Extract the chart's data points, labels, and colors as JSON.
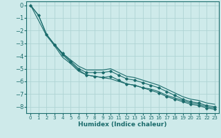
{
  "xlabel": "Humidex (Indice chaleur)",
  "ylabel": "",
  "background_color": "#ceeaea",
  "grid_color": "#aed4d4",
  "line_color": "#1a6b6b",
  "xlim": [
    -0.5,
    23.5
  ],
  "ylim": [
    -8.5,
    0.3
  ],
  "xticks": [
    0,
    1,
    2,
    3,
    4,
    5,
    6,
    7,
    8,
    9,
    10,
    11,
    12,
    13,
    14,
    15,
    16,
    17,
    18,
    19,
    20,
    21,
    22,
    23
  ],
  "yticks": [
    0,
    -1,
    -2,
    -3,
    -4,
    -5,
    -6,
    -7,
    -8
  ],
  "series": [
    {
      "x": [
        0,
        1,
        2,
        3,
        4,
        5,
        6,
        7,
        8,
        9,
        10,
        11,
        12,
        13,
        14,
        15,
        16,
        17,
        18,
        19,
        20,
        21,
        22,
        23
      ],
      "y": [
        0.0,
        -0.8,
        -2.3,
        -3.1,
        -3.8,
        -4.4,
        -5.0,
        -5.3,
        -5.3,
        -5.3,
        -5.2,
        -5.5,
        -5.8,
        -5.9,
        -6.1,
        -6.3,
        -6.5,
        -6.8,
        -7.1,
        -7.4,
        -7.6,
        -7.7,
        -7.9,
        -8.0
      ],
      "marker": true
    },
    {
      "x": [
        0,
        1,
        2,
        3,
        4,
        5,
        6,
        7,
        8,
        9,
        10,
        11,
        12,
        13,
        14,
        15,
        16,
        17,
        18,
        19,
        20,
        21,
        22,
        23
      ],
      "y": [
        0.0,
        -0.8,
        -2.3,
        -3.1,
        -3.8,
        -4.3,
        -4.8,
        -5.1,
        -5.1,
        -5.1,
        -5.0,
        -5.3,
        -5.6,
        -5.7,
        -5.9,
        -6.1,
        -6.3,
        -6.6,
        -6.9,
        -7.2,
        -7.4,
        -7.5,
        -7.7,
        -7.8
      ],
      "marker": false
    },
    {
      "x": [
        0,
        1,
        2,
        3,
        4,
        5,
        6,
        7,
        8,
        9,
        10,
        11,
        12,
        13,
        14,
        15,
        16,
        17,
        18,
        19,
        20,
        21,
        22,
        23
      ],
      "y": [
        0.0,
        -1.2,
        -2.4,
        -3.2,
        -4.1,
        -4.6,
        -5.2,
        -5.5,
        -5.6,
        -5.7,
        -5.8,
        -6.0,
        -6.2,
        -6.3,
        -6.5,
        -6.6,
        -6.8,
        -7.1,
        -7.3,
        -7.5,
        -7.7,
        -7.8,
        -8.0,
        -8.1
      ],
      "marker": false
    },
    {
      "x": [
        3,
        4,
        5,
        6,
        7,
        8,
        9,
        10,
        11,
        12,
        13,
        14,
        15,
        16,
        17,
        18,
        19,
        20,
        21,
        22,
        23
      ],
      "y": [
        -3.1,
        -3.9,
        -4.5,
        -5.1,
        -5.5,
        -5.6,
        -5.7,
        -5.6,
        -5.9,
        -6.2,
        -6.3,
        -6.5,
        -6.7,
        -6.9,
        -7.2,
        -7.4,
        -7.6,
        -7.8,
        -7.9,
        -8.1,
        -8.2
      ],
      "marker": true
    }
  ]
}
